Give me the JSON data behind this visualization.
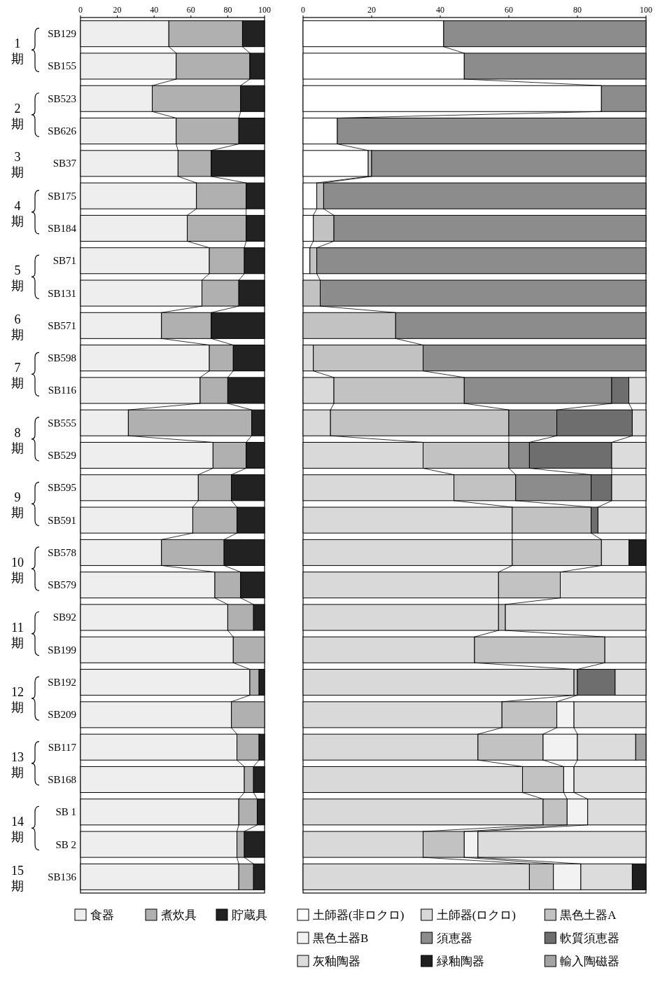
{
  "chart_data": [
    {
      "type": "bar",
      "orientation": "horizontal",
      "stacked": true,
      "xlim": [
        0,
        100
      ],
      "xticks": [
        0,
        20,
        40,
        60,
        80,
        100
      ],
      "legend": "bottom",
      "categories": [
        "SB129",
        "SB155",
        "SB523",
        "SB626",
        "SB37",
        "SB175",
        "SB184",
        "SB71",
        "SB131",
        "SB571",
        "SB598",
        "SB116",
        "SB555",
        "SB529",
        "SB595",
        "SB591",
        "SB578",
        "SB579",
        "SB92",
        "SB199",
        "SB192",
        "SB209",
        "SB117",
        "SB168",
        "SB 1",
        "SB 2",
        "SB136"
      ],
      "annotations": [
        "1期",
        "2期",
        "3期",
        "4期",
        "5期",
        "6期",
        "7期",
        "8期",
        "9期",
        "10期",
        "11期",
        "12期",
        "13期",
        "14期",
        "15期"
      ],
      "series": [
        {
          "name": "食器",
          "color": "#eeeeee",
          "values": [
            48,
            52,
            39,
            52,
            53,
            63,
            58,
            70,
            66,
            44,
            70,
            65,
            26,
            72,
            64,
            61,
            44,
            73,
            80,
            83,
            92,
            82,
            85,
            89,
            86,
            85,
            86
          ]
        },
        {
          "name": "煮炊具",
          "color": "#b0b0b0",
          "values": [
            40,
            40,
            48,
            34,
            18,
            27,
            32,
            19,
            20,
            27,
            13,
            15,
            67,
            18,
            18,
            24,
            34,
            14,
            14,
            17,
            5,
            18,
            12,
            5,
            10,
            4,
            8
          ]
        },
        {
          "name": "貯蔵具",
          "color": "#222222",
          "values": [
            12,
            8,
            13,
            14,
            29,
            10,
            10,
            11,
            14,
            29,
            17,
            20,
            7,
            10,
            18,
            15,
            22,
            13,
            6,
            null,
            3,
            null,
            3,
            6,
            4,
            11,
            6
          ]
        }
      ]
    },
    {
      "type": "bar",
      "orientation": "horizontal",
      "stacked": true,
      "xlim": [
        0,
        100
      ],
      "xticks": [
        0,
        20,
        40,
        60,
        80,
        100
      ],
      "legend": "bottom",
      "tick_labels": "x",
      "series": [
        {
          "name": "土師器(非ロクロ)",
          "color": "#ffffff",
          "values": [
            41,
            47,
            87,
            10,
            19,
            4,
            3,
            2,
            null,
            null,
            null,
            null,
            null,
            null,
            null,
            null,
            null,
            null,
            null,
            null,
            null,
            null,
            null,
            null,
            null,
            null,
            null
          ]
        },
        {
          "name": "土師器(ロクロ)",
          "color": "#d9d9d9",
          "values": [
            null,
            null,
            null,
            null,
            null,
            null,
            null,
            null,
            null,
            null,
            3,
            9,
            8,
            35,
            44,
            61,
            61,
            57,
            57,
            50,
            79,
            58,
            51,
            64,
            70,
            35,
            66
          ]
        },
        {
          "name": "黒色土器A",
          "color": "#c2c2c2",
          "values": [
            null,
            null,
            null,
            null,
            1,
            2,
            6,
            2,
            5,
            27,
            32,
            38,
            52,
            25,
            18,
            23,
            26,
            18,
            2,
            38,
            1,
            16,
            19,
            12,
            7,
            12,
            7
          ]
        },
        {
          "name": "黒色土器B",
          "color": "#f2f2f2",
          "values": [
            null,
            null,
            null,
            null,
            null,
            null,
            null,
            null,
            null,
            null,
            null,
            null,
            null,
            null,
            null,
            null,
            null,
            null,
            null,
            null,
            null,
            5,
            10,
            3,
            6,
            4,
            8
          ]
        },
        {
          "name": "須恵器",
          "color": "#8c8c8c",
          "values": [
            59,
            53,
            13,
            90,
            80,
            94,
            91,
            96,
            95,
            73,
            65,
            43,
            14,
            6,
            22,
            null,
            null,
            null,
            null,
            null,
            null,
            null,
            null,
            null,
            null,
            null,
            null
          ]
        },
        {
          "name": "軟質須恵器",
          "color": "#6e6e6e",
          "values": [
            null,
            null,
            null,
            null,
            null,
            null,
            null,
            null,
            null,
            null,
            null,
            5,
            22,
            24,
            6,
            2,
            null,
            null,
            null,
            null,
            11,
            null,
            null,
            null,
            null,
            null,
            null
          ]
        },
        {
          "name": "灰釉陶器",
          "color": "#dcdcdc",
          "values": [
            null,
            null,
            null,
            null,
            null,
            null,
            null,
            null,
            null,
            null,
            null,
            5,
            4,
            10,
            10,
            14,
            8,
            25,
            41,
            12,
            9,
            21,
            17,
            21,
            17,
            49,
            15
          ]
        },
        {
          "name": "緑釉陶器",
          "color": "#1e1e1e",
          "values": [
            null,
            null,
            null,
            null,
            null,
            null,
            null,
            null,
            null,
            null,
            null,
            null,
            null,
            null,
            null,
            null,
            5,
            null,
            null,
            null,
            null,
            null,
            null,
            null,
            null,
            null,
            4
          ]
        },
        {
          "name": "輸入陶磁器",
          "color": "#a3a3a3",
          "values": [
            null,
            null,
            null,
            null,
            null,
            null,
            null,
            null,
            null,
            null,
            null,
            null,
            null,
            null,
            null,
            null,
            null,
            null,
            null,
            null,
            null,
            null,
            3,
            null,
            null,
            null,
            null
          ]
        }
      ]
    }
  ]
}
